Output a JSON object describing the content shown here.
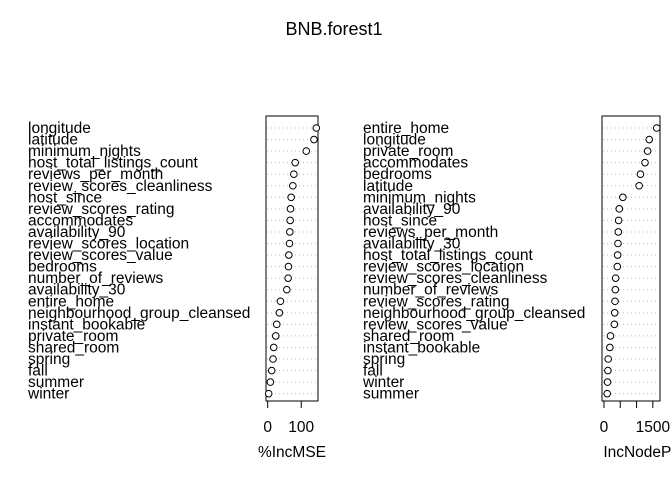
{
  "chart_data": {
    "title": "BNB.forest1",
    "colors": {
      "point_stroke": "#000000",
      "guide": "#bdbdbd",
      "frame": "#000000",
      "background": "#ffffff"
    },
    "panels": [
      {
        "type": "dotchart",
        "xlabel": "%IncMSE",
        "xticks": [
          0,
          100
        ],
        "xlim": [
          -5,
          150
        ],
        "grid": "dotted horizontal guide lines",
        "items": [
          {
            "label": "longitude",
            "value": 145
          },
          {
            "label": "latitude",
            "value": 138
          },
          {
            "label": "minimum_nights",
            "value": 115
          },
          {
            "label": "host_total_listings_count",
            "value": 82
          },
          {
            "label": "reviews_per_month",
            "value": 78
          },
          {
            "label": "review_scores_cleanliness",
            "value": 75
          },
          {
            "label": "host_since",
            "value": 70
          },
          {
            "label": "review_scores_rating",
            "value": 68
          },
          {
            "label": "accommodates",
            "value": 67
          },
          {
            "label": "availability_90",
            "value": 66
          },
          {
            "label": "review_scores_location",
            "value": 65
          },
          {
            "label": "review_scores_value",
            "value": 63
          },
          {
            "label": "bedrooms",
            "value": 62
          },
          {
            "label": "number_of_reviews",
            "value": 61
          },
          {
            "label": "availability_30",
            "value": 57
          },
          {
            "label": "entire_home",
            "value": 38
          },
          {
            "label": "neighbourhood_group_cleansed",
            "value": 35
          },
          {
            "label": "instant_bookable",
            "value": 27
          },
          {
            "label": "private_room",
            "value": 24
          },
          {
            "label": "shared_room",
            "value": 18
          },
          {
            "label": "spring",
            "value": 16
          },
          {
            "label": "fall",
            "value": 12
          },
          {
            "label": "summer",
            "value": 8
          },
          {
            "label": "winter",
            "value": 3
          }
        ]
      },
      {
        "type": "dotchart",
        "xlabel": "IncNodePurity",
        "xticks": [
          0,
          500,
          1000,
          1500
        ],
        "xticklabels": [
          "0",
          "",
          "",
          "1500"
        ],
        "xlim": [
          -60,
          1720
        ],
        "grid": "dotted horizontal guide lines",
        "items": [
          {
            "label": "entire_home",
            "value": 1620
          },
          {
            "label": "longitude",
            "value": 1390
          },
          {
            "label": "private_room",
            "value": 1340
          },
          {
            "label": "accommodates",
            "value": 1260
          },
          {
            "label": "bedrooms",
            "value": 1120
          },
          {
            "label": "latitude",
            "value": 1080
          },
          {
            "label": "minimum_nights",
            "value": 580
          },
          {
            "label": "availability_90",
            "value": 470
          },
          {
            "label": "host_since",
            "value": 450
          },
          {
            "label": "reviews_per_month",
            "value": 440
          },
          {
            "label": "availability_30",
            "value": 430
          },
          {
            "label": "host_total_listings_count",
            "value": 420
          },
          {
            "label": "review_scores_location",
            "value": 410
          },
          {
            "label": "review_scores_cleanliness",
            "value": 360
          },
          {
            "label": "number_of_reviews",
            "value": 350
          },
          {
            "label": "review_scores_rating",
            "value": 340
          },
          {
            "label": "neighbourhood_group_cleansed",
            "value": 330
          },
          {
            "label": "review_scores_value",
            "value": 320
          },
          {
            "label": "shared_room",
            "value": 200
          },
          {
            "label": "instant_bookable",
            "value": 180
          },
          {
            "label": "spring",
            "value": 130
          },
          {
            "label": "fall",
            "value": 120
          },
          {
            "label": "winter",
            "value": 110
          },
          {
            "label": "summer",
            "value": 100
          }
        ]
      }
    ]
  }
}
